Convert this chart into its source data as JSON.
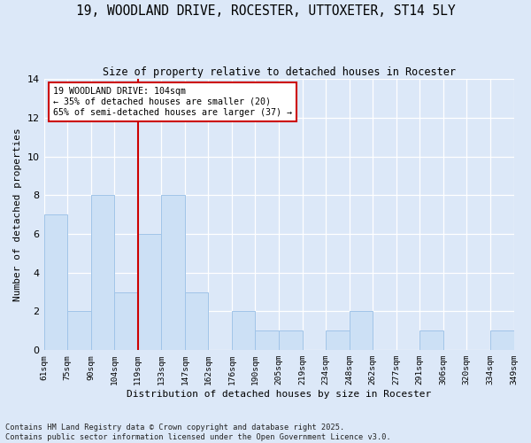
{
  "title": "19, WOODLAND DRIVE, ROCESTER, UTTOXETER, ST14 5LY",
  "subtitle": "Size of property relative to detached houses in Rocester",
  "xlabel": "Distribution of detached houses by size in Rocester",
  "ylabel": "Number of detached properties",
  "footnote1": "Contains HM Land Registry data © Crown copyright and database right 2025.",
  "footnote2": "Contains public sector information licensed under the Open Government Licence v3.0.",
  "bin_edges": [
    "61sqm",
    "75sqm",
    "90sqm",
    "104sqm",
    "119sqm",
    "133sqm",
    "147sqm",
    "162sqm",
    "176sqm",
    "190sqm",
    "205sqm",
    "219sqm",
    "234sqm",
    "248sqm",
    "262sqm",
    "277sqm",
    "291sqm",
    "306sqm",
    "320sqm",
    "334sqm",
    "349sqm"
  ],
  "counts": [
    7,
    2,
    8,
    3,
    6,
    8,
    3,
    0,
    2,
    1,
    1,
    0,
    1,
    2,
    0,
    0,
    1,
    0,
    0,
    1
  ],
  "highlight_bin_index": 3,
  "bar_color": "#cce0f5",
  "bar_edge_color": "#a0c4e8",
  "highlight_line_color": "#cc0000",
  "annotation_text": "19 WOODLAND DRIVE: 104sqm\n← 35% of detached houses are smaller (20)\n65% of semi-detached houses are larger (37) →",
  "ylim": [
    0,
    14
  ],
  "yticks": [
    0,
    2,
    4,
    6,
    8,
    10,
    12,
    14
  ],
  "bg_color": "#dce8f8",
  "plot_bg_color": "#dce8f8",
  "grid_color": "#ffffff"
}
